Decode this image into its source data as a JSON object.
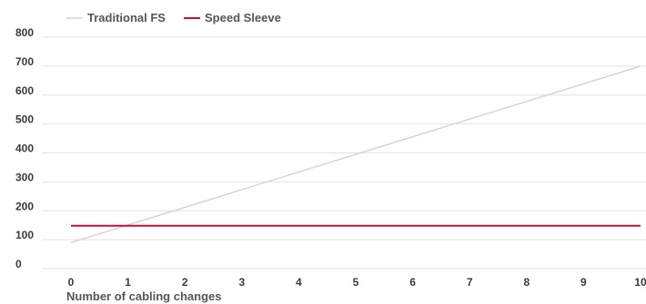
{
  "chart_data": {
    "type": "line",
    "xlabel": "Number of cabling changes",
    "ylabel": "",
    "x": [
      0,
      1,
      2,
      3,
      4,
      5,
      6,
      7,
      8,
      9,
      10
    ],
    "xlim": [
      0,
      10
    ],
    "ylim": [
      0,
      800
    ],
    "yticks": [
      0,
      100,
      200,
      300,
      400,
      500,
      600,
      700,
      800
    ],
    "grid": true,
    "legend_position": "top-left",
    "series": [
      {
        "name": "Traditional FS",
        "color": "#d8d3c8",
        "values": [
          90,
          151,
          212,
          273,
          334,
          395,
          456,
          517,
          578,
          639,
          700
        ]
      },
      {
        "name": "Speed Sleeve",
        "color": "#c8102e",
        "values": [
          148,
          148,
          148,
          148,
          148,
          148,
          148,
          148,
          148,
          148,
          148
        ]
      }
    ]
  }
}
